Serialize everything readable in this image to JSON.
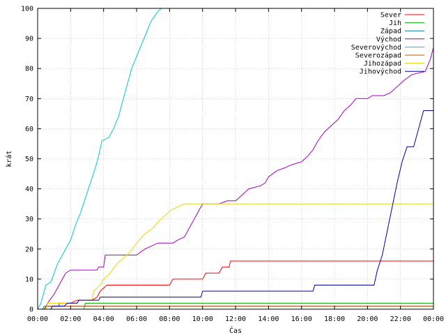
{
  "chart_data": {
    "type": "line",
    "xlabel": "Čas",
    "ylabel": "krát",
    "xlim": [
      0,
      24
    ],
    "ylim": [
      0,
      100
    ],
    "x_ticks": [
      "00:00",
      "02:00",
      "04:00",
      "06:00",
      "08:00",
      "10:00",
      "12:00",
      "14:00",
      "16:00",
      "18:00",
      "20:00",
      "22:00",
      "00:00"
    ],
    "y_ticks": [
      0,
      10,
      20,
      30,
      40,
      50,
      60,
      70,
      80,
      90,
      100
    ],
    "grid": true,
    "legend_position": "top-right",
    "series": [
      {
        "name": "Sever",
        "color": "#ff0000",
        "points": [
          [
            0,
            0
          ],
          [
            0.5,
            0
          ],
          [
            0.5,
            1
          ],
          [
            1.3,
            1
          ],
          [
            1.3,
            2
          ],
          [
            2,
            2
          ],
          [
            2.4,
            3
          ],
          [
            3.3,
            3
          ],
          [
            3.6,
            4
          ],
          [
            3.8,
            6
          ],
          [
            4,
            7
          ],
          [
            4.2,
            8
          ],
          [
            8,
            8
          ],
          [
            8.2,
            10
          ],
          [
            10,
            10
          ],
          [
            10.2,
            12
          ],
          [
            11,
            12
          ],
          [
            11.2,
            14
          ],
          [
            11.6,
            14
          ],
          [
            11.7,
            16
          ],
          [
            24,
            16
          ]
        ]
      },
      {
        "name": "Jih",
        "color": "#00aa00",
        "points": [
          [
            0,
            0
          ],
          [
            2.8,
            0
          ],
          [
            2.9,
            2
          ],
          [
            24,
            2
          ]
        ]
      },
      {
        "name": "Západ",
        "color": "#0080a0",
        "points": [
          [
            0,
            0
          ],
          [
            0.3,
            0
          ],
          [
            0.4,
            1
          ],
          [
            24,
            1
          ]
        ]
      },
      {
        "name": "Východ",
        "color": "#a000c0",
        "points": [
          [
            0,
            0
          ],
          [
            0.4,
            0
          ],
          [
            0.6,
            2
          ],
          [
            1,
            5
          ],
          [
            1.3,
            8
          ],
          [
            1.5,
            10
          ],
          [
            1.7,
            12
          ],
          [
            2,
            13
          ],
          [
            3.6,
            13
          ],
          [
            3.7,
            14
          ],
          [
            4,
            14
          ],
          [
            4.1,
            18
          ],
          [
            6,
            18
          ],
          [
            6.5,
            20
          ],
          [
            7.3,
            22
          ],
          [
            8.2,
            22
          ],
          [
            8.5,
            23
          ],
          [
            8.9,
            24
          ],
          [
            9.2,
            27
          ],
          [
            9.5,
            30
          ],
          [
            9.8,
            33
          ],
          [
            10,
            35
          ],
          [
            11,
            35
          ],
          [
            11.5,
            36
          ],
          [
            12,
            36
          ],
          [
            12.4,
            38
          ],
          [
            12.8,
            40
          ],
          [
            13.5,
            41
          ],
          [
            13.8,
            42
          ],
          [
            14,
            44
          ],
          [
            14.5,
            46
          ],
          [
            15,
            47
          ],
          [
            15.4,
            48
          ],
          [
            16,
            49
          ],
          [
            16.4,
            51
          ],
          [
            16.7,
            53
          ],
          [
            17,
            56
          ],
          [
            17.4,
            59
          ],
          [
            17.8,
            61
          ],
          [
            18.2,
            63
          ],
          [
            18.6,
            66
          ],
          [
            19,
            68
          ],
          [
            19.3,
            70
          ],
          [
            20,
            70
          ],
          [
            20.3,
            71
          ],
          [
            21,
            71
          ],
          [
            21.4,
            72
          ],
          [
            21.8,
            74
          ],
          [
            22.2,
            76
          ],
          [
            22.7,
            78
          ],
          [
            23.5,
            79
          ],
          [
            23.8,
            83
          ],
          [
            24,
            87
          ]
        ]
      },
      {
        "name": "Severovýchod",
        "color": "#00c8d0",
        "points": [
          [
            0,
            0
          ],
          [
            0.2,
            2
          ],
          [
            0.35,
            5
          ],
          [
            0.5,
            8
          ],
          [
            0.8,
            9
          ],
          [
            1,
            12
          ],
          [
            1.2,
            15
          ],
          [
            1.5,
            18
          ],
          [
            1.7,
            20
          ],
          [
            2,
            23
          ],
          [
            2.3,
            28
          ],
          [
            2.6,
            32
          ],
          [
            2.9,
            37
          ],
          [
            3.2,
            42
          ],
          [
            3.5,
            47
          ],
          [
            3.7,
            51
          ],
          [
            3.9,
            56
          ],
          [
            4.3,
            57
          ],
          [
            4.6,
            60
          ],
          [
            4.9,
            64
          ],
          [
            5.1,
            68
          ],
          [
            5.3,
            72
          ],
          [
            5.5,
            76
          ],
          [
            5.7,
            80
          ],
          [
            6,
            84
          ],
          [
            6.3,
            88
          ],
          [
            6.6,
            92
          ],
          [
            6.9,
            96
          ],
          [
            7.3,
            99
          ],
          [
            7.5,
            100
          ]
        ]
      },
      {
        "name": "Severozápad",
        "color": "#c05000",
        "points": [
          [
            0,
            0
          ],
          [
            0.4,
            0
          ],
          [
            0.5,
            1
          ],
          [
            24,
            1
          ]
        ]
      },
      {
        "name": "Jihozápad",
        "color": "#e8d800",
        "points": [
          [
            0,
            0
          ],
          [
            0.5,
            0
          ],
          [
            0.6,
            2
          ],
          [
            2.4,
            2
          ],
          [
            2.5,
            3
          ],
          [
            3.3,
            3
          ],
          [
            3.4,
            6
          ],
          [
            3.8,
            8
          ],
          [
            4,
            10
          ],
          [
            4.4,
            12
          ],
          [
            4.8,
            15
          ],
          [
            5.2,
            17
          ],
          [
            5.6,
            19
          ],
          [
            6,
            22
          ],
          [
            6.5,
            25
          ],
          [
            7,
            27
          ],
          [
            7.3,
            29
          ],
          [
            7.7,
            31
          ],
          [
            8.1,
            33
          ],
          [
            8.5,
            34
          ],
          [
            8.9,
            35
          ],
          [
            24,
            35
          ]
        ]
      },
      {
        "name": "Jihovýchod",
        "color": "#0000a0",
        "points": [
          [
            0,
            0
          ],
          [
            0.8,
            0
          ],
          [
            0.9,
            1
          ],
          [
            1.6,
            1
          ],
          [
            1.8,
            2
          ],
          [
            2.4,
            2
          ],
          [
            2.5,
            3
          ],
          [
            3.7,
            3
          ],
          [
            3.8,
            4
          ],
          [
            9.9,
            4
          ],
          [
            10,
            6
          ],
          [
            16.7,
            6
          ],
          [
            16.8,
            8
          ],
          [
            20.4,
            8
          ],
          [
            20.6,
            13
          ],
          [
            20.9,
            18
          ],
          [
            21.2,
            26
          ],
          [
            21.5,
            34
          ],
          [
            21.8,
            42
          ],
          [
            22.1,
            49
          ],
          [
            22.4,
            54
          ],
          [
            22.8,
            54
          ],
          [
            23.1,
            60
          ],
          [
            23.4,
            66
          ],
          [
            24,
            66
          ]
        ]
      }
    ]
  }
}
